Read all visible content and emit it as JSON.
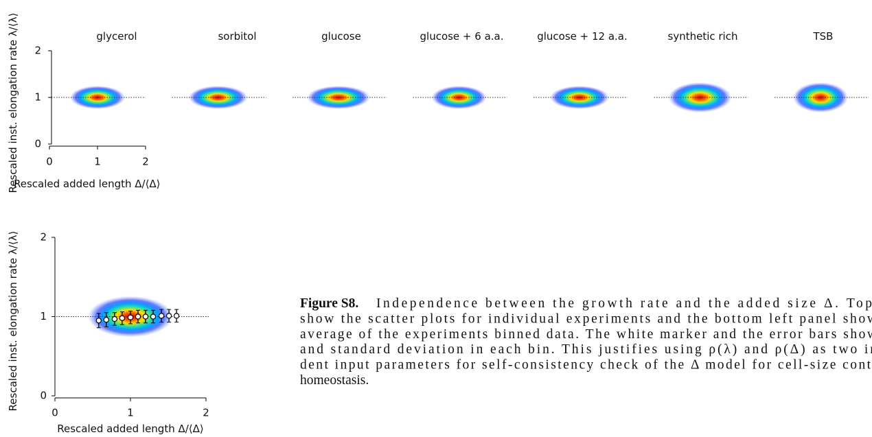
{
  "top_panels": {
    "titles": [
      "glycerol",
      "sorbitol",
      "glucose",
      "glucose + 6 a.a.",
      "glucose + 12 a.a.",
      "synthetic rich",
      "TSB"
    ],
    "x_label": "Rescaled added length Δ/⟨Δ⟩",
    "y_label": "Rescaled inst. elongation rate λ/⟨λ⟩",
    "xlim": [
      0,
      2
    ],
    "ylim": [
      0,
      2
    ],
    "xticks": [
      0,
      1,
      2
    ],
    "yticks": [
      0,
      1,
      2
    ],
    "reference_y": 1
  },
  "bottom_panel": {
    "x_label": "Rescaled added length Δ/⟨Δ⟩",
    "y_label": "Rescaled inst. elongation rate λ/⟨λ⟩",
    "xlim": [
      0,
      2
    ],
    "ylim": [
      0,
      2
    ],
    "xticks": [
      0,
      1,
      2
    ],
    "yticks": [
      0,
      1,
      2
    ],
    "reference_y": 1,
    "x": [
      0.58,
      0.68,
      0.79,
      0.89,
      1.0,
      1.1,
      1.2,
      1.3,
      1.41,
      1.51,
      1.61
    ],
    "y": [
      0.95,
      0.96,
      0.97,
      0.98,
      0.99,
      1.0,
      1.0,
      1.0,
      1.01,
      1.01,
      1.01
    ],
    "err": [
      0.09,
      0.09,
      0.08,
      0.08,
      0.08,
      0.08,
      0.08,
      0.08,
      0.08,
      0.08,
      0.08
    ]
  },
  "caption": {
    "label": "Figure S8.",
    "lines": [
      "Independence between the growth rate and the added size Δ. Top",
      "show the scatter plots for individual experiments and the bottom left panel show",
      "average of the experiments binned data. The white marker and the error bars show",
      "and standard deviation in each bin. This justifies using ρ(λ) and ρ(Δ) as two in",
      "dent input parameters for self-consistency check of the Δ model for cell-size contr",
      "homeostasis."
    ]
  }
}
